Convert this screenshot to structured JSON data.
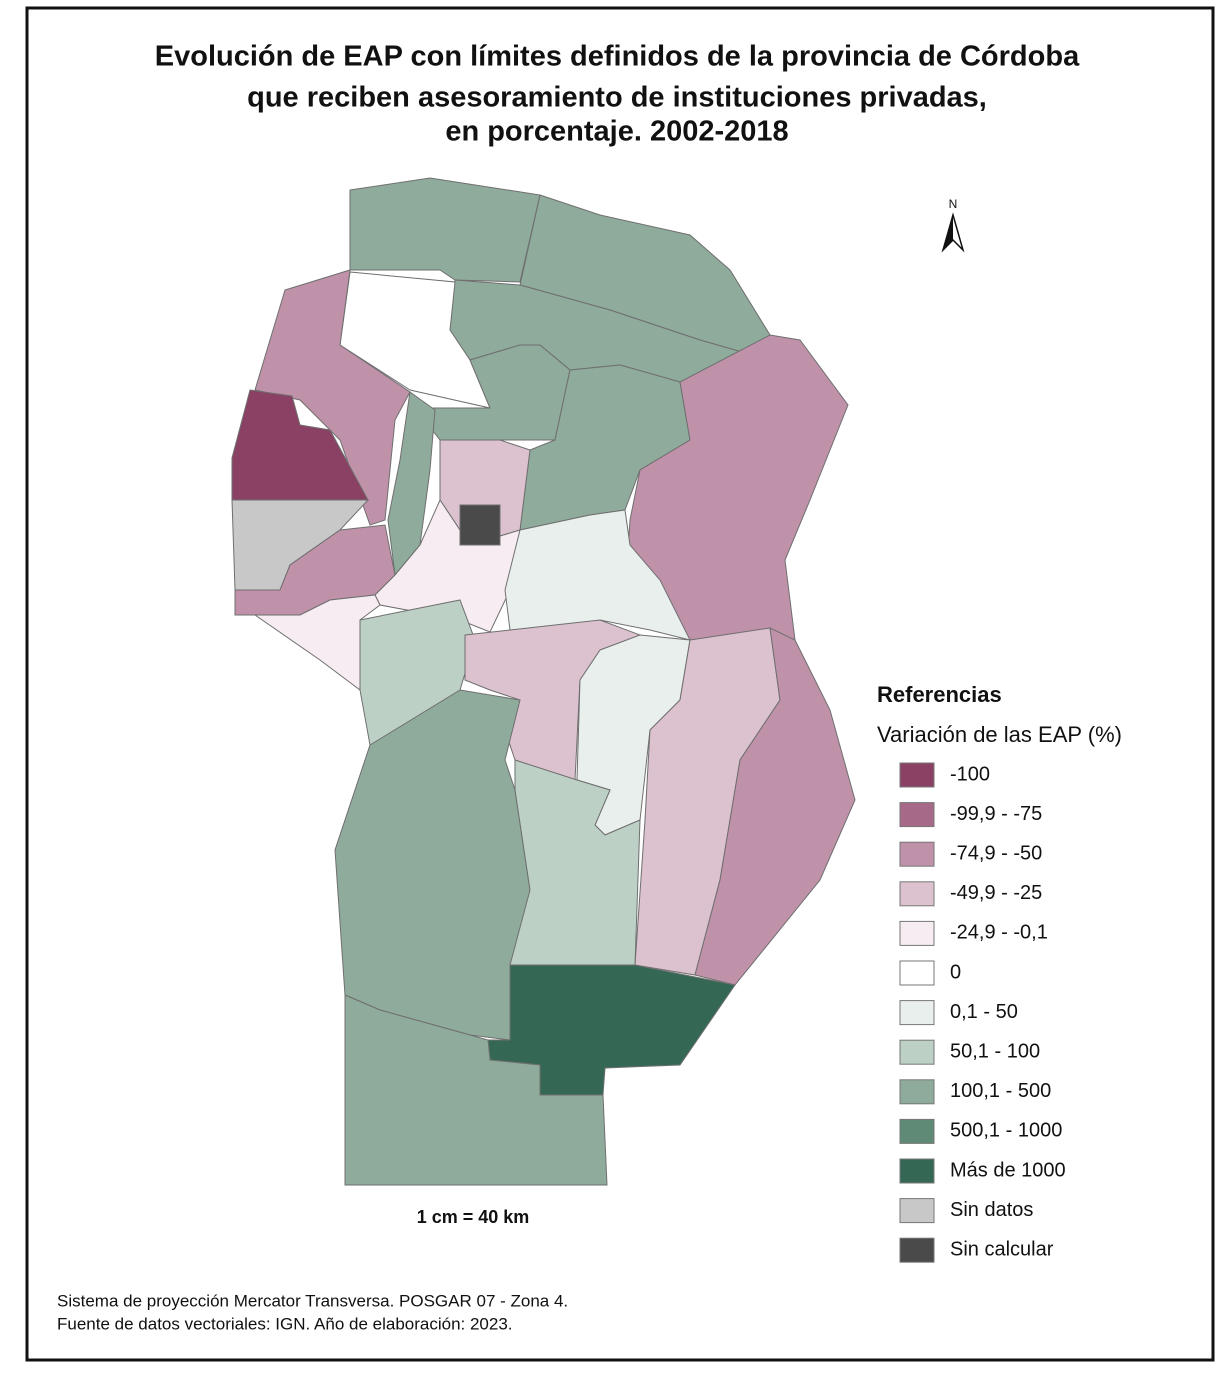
{
  "title": [
    "Evolución de EAP con límites definidos de la provincia de Córdoba",
    "que reciben asesoramiento de instituciones privadas,",
    "en porcentaje. 2002-2018"
  ],
  "north": "N",
  "legend": {
    "title": "Referencias",
    "subtitle": "Variación de las EAP (%)",
    "items": [
      {
        "label": "-100",
        "color": "#8b4163"
      },
      {
        "label": "-99,9 - -75",
        "color": "#a66a88"
      },
      {
        "label": "-74,9 - -50",
        "color": "#bf92aa"
      },
      {
        "label": "-49,9 - -25",
        "color": "#dcc1cf"
      },
      {
        "label": "-24,9 - -0,1",
        "color": "#f6ecf1"
      },
      {
        "label": "0",
        "color": "#ffffff"
      },
      {
        "label": "0,1 - 50",
        "color": "#e9efec"
      },
      {
        "label": "50,1 - 100",
        "color": "#bdd0c6"
      },
      {
        "label": "100,1 - 500",
        "color": "#8fab9c"
      },
      {
        "label": "500,1 - 1000",
        "color": "#5f8a75"
      },
      {
        "label": "Más de 1000",
        "color": "#346855"
      },
      {
        "label": "Sin datos",
        "color": "#c8c8c8"
      },
      {
        "label": "Sin calcular",
        "color": "#4a4a4a"
      }
    ]
  },
  "scale": "1 cm = 40 km",
  "footer": [
    "Sistema de proyección Mercator Transversa. POSGAR 07 - Zona 4.",
    "Fuente de datos vectoriales: IGN. Año de elaboración: 2023."
  ]
}
